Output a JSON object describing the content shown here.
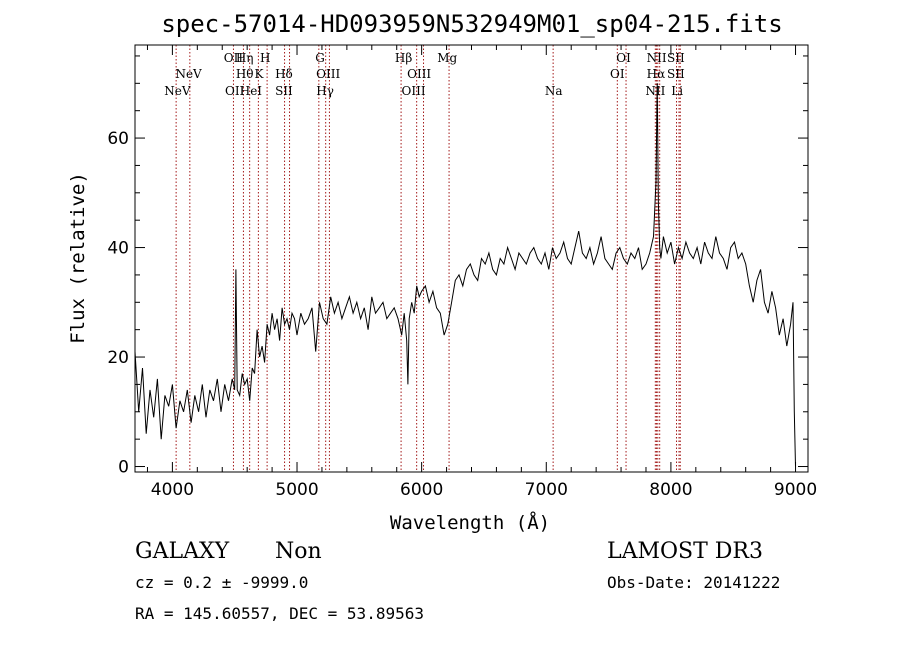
{
  "chart_data": {
    "type": "line",
    "title": "spec-57014-HD093959N532949M01_sp04-215.fits",
    "xlabel": "Wavelength (Å)",
    "ylabel": "Flux (relative)",
    "xlim": [
      3700,
      9100
    ],
    "ylim": [
      -1,
      77
    ],
    "xticks": [
      4000,
      5000,
      6000,
      7000,
      8000,
      9000
    ],
    "yticks": [
      0,
      20,
      40,
      60
    ],
    "grid": false,
    "series": [
      {
        "x": [
          3700,
          3730,
          3760,
          3790,
          3820,
          3850,
          3880,
          3910,
          3940,
          3970,
          4000,
          4030,
          4060,
          4090,
          4120,
          4150,
          4180,
          4210,
          4240,
          4270,
          4300,
          4330,
          4360,
          4390,
          4420,
          4450,
          4480,
          4500,
          4510,
          4520,
          4540,
          4560,
          4580,
          4600,
          4620,
          4640,
          4660,
          4680,
          4700,
          4720,
          4740,
          4760,
          4780,
          4800,
          4820,
          4840,
          4860,
          4880,
          4900,
          4920,
          4940,
          4960,
          4980,
          5000,
          5030,
          5060,
          5090,
          5120,
          5150,
          5180,
          5210,
          5240,
          5270,
          5300,
          5330,
          5360,
          5390,
          5420,
          5450,
          5480,
          5510,
          5540,
          5570,
          5600,
          5630,
          5660,
          5690,
          5720,
          5750,
          5780,
          5810,
          5840,
          5860,
          5880,
          5890,
          5900,
          5920,
          5940,
          5960,
          5980,
          6000,
          6030,
          6060,
          6090,
          6120,
          6150,
          6180,
          6210,
          6240,
          6270,
          6300,
          6330,
          6360,
          6390,
          6420,
          6450,
          6480,
          6510,
          6540,
          6570,
          6600,
          6630,
          6660,
          6690,
          6720,
          6750,
          6780,
          6810,
          6840,
          6870,
          6900,
          6930,
          6960,
          6990,
          7020,
          7050,
          7080,
          7110,
          7140,
          7170,
          7200,
          7230,
          7260,
          7290,
          7320,
          7350,
          7380,
          7410,
          7440,
          7470,
          7500,
          7530,
          7560,
          7590,
          7620,
          7650,
          7680,
          7710,
          7740,
          7770,
          7800,
          7830,
          7860,
          7880,
          7890,
          7900,
          7910,
          7920,
          7940,
          7970,
          8000,
          8030,
          8060,
          8090,
          8120,
          8150,
          8180,
          8210,
          8240,
          8270,
          8300,
          8330,
          8360,
          8390,
          8420,
          8450,
          8480,
          8510,
          8540,
          8570,
          8600,
          8630,
          8660,
          8690,
          8720,
          8750,
          8780,
          8810,
          8840,
          8870,
          8900,
          8930,
          8960,
          8980,
          8990,
          9000
        ],
        "y": [
          21,
          10,
          18,
          6,
          14,
          9,
          16,
          5,
          13,
          11,
          15,
          7,
          12,
          10,
          14,
          8,
          13,
          10,
          15,
          9,
          14,
          12,
          16,
          10,
          15,
          12,
          16,
          14,
          36,
          14,
          13,
          17,
          15,
          16,
          12,
          18,
          17,
          25,
          20,
          22,
          19,
          26,
          24,
          28,
          25,
          27,
          23,
          29,
          26,
          27,
          25,
          28,
          27,
          24,
          28,
          26,
          27,
          29,
          21,
          30,
          27,
          26,
          31,
          28,
          30,
          27,
          29,
          31,
          28,
          30,
          27,
          29,
          25,
          31,
          28,
          29,
          30,
          27,
          28,
          29,
          27,
          24,
          28,
          23,
          15,
          27,
          30,
          28,
          33,
          31,
          32,
          33,
          30,
          32,
          29,
          28,
          24,
          26,
          30,
          34,
          35,
          33,
          36,
          37,
          35,
          34,
          38,
          37,
          39,
          36,
          35,
          38,
          37,
          40,
          38,
          36,
          39,
          38,
          37,
          39,
          40,
          38,
          37,
          39,
          36,
          40,
          38,
          39,
          41,
          38,
          37,
          40,
          43,
          39,
          38,
          40,
          37,
          39,
          42,
          38,
          37,
          36,
          39,
          40,
          38,
          37,
          39,
          38,
          40,
          36,
          37,
          39,
          42,
          52,
          70,
          48,
          40,
          38,
          42,
          39,
          41,
          37,
          40,
          38,
          41,
          39,
          38,
          40,
          37,
          41,
          39,
          38,
          42,
          39,
          38,
          36,
          40,
          41,
          38,
          39,
          37,
          33,
          30,
          34,
          36,
          30,
          28,
          32,
          29,
          24,
          27,
          22,
          26,
          30,
          10,
          0
        ]
      }
    ],
    "emission_lines": [
      {
        "label": "NeV",
        "x": 4040,
        "row": 3
      },
      {
        "label": "NeV",
        "x": 4130,
        "row": 2
      },
      {
        "label": "OII",
        "x": 4490,
        "row": 1
      },
      {
        "label": "OII",
        "x": 4500,
        "row": 3
      },
      {
        "label": "Hη",
        "x": 4580,
        "row": 1
      },
      {
        "label": "Hθ",
        "x": 4580,
        "row": 2
      },
      {
        "label": "HeI",
        "x": 4630,
        "row": 3
      },
      {
        "label": "H",
        "x": 4745,
        "row": 1
      },
      {
        "label": "K",
        "x": 4695,
        "row": 2
      },
      {
        "label": "Hδ",
        "x": 4895,
        "row": 2
      },
      {
        "label": "SII",
        "x": 4895,
        "row": 3
      },
      {
        "label": "G",
        "x": 5185,
        "row": 1
      },
      {
        "label": "OIII",
        "x": 5250,
        "row": 2
      },
      {
        "label": "Hγ",
        "x": 5225,
        "row": 3
      },
      {
        "label": "Hβ",
        "x": 5855,
        "row": 1
      },
      {
        "label": "OIII",
        "x": 5980,
        "row": 2
      },
      {
        "label": "OIII",
        "x": 5935,
        "row": 3
      },
      {
        "label": "Mg",
        "x": 6205,
        "row": 1
      },
      {
        "label": "Na",
        "x": 7060,
        "row": 3
      },
      {
        "label": "OI",
        "x": 7620,
        "row": 1
      },
      {
        "label": "OI",
        "x": 7570,
        "row": 2
      },
      {
        "label": "NII",
        "x": 7885,
        "row": 1
      },
      {
        "label": "Hα",
        "x": 7880,
        "row": 2
      },
      {
        "label": "NII",
        "x": 7875,
        "row": 3
      },
      {
        "label": "SII",
        "x": 8040,
        "row": 1
      },
      {
        "label": "SII",
        "x": 8040,
        "row": 2
      },
      {
        "label": "Li",
        "x": 8050,
        "row": 3
      }
    ],
    "line_positions": [
      4030,
      4140,
      4490,
      4570,
      4620,
      4690,
      4760,
      4900,
      4940,
      5175,
      5230,
      5260,
      5835,
      5960,
      6015,
      6220,
      7055,
      7570,
      7640,
      7875,
      7885,
      7895,
      7910,
      8045,
      8065,
      8075
    ]
  },
  "info": {
    "object_type": "GALAXY",
    "subclass": "Non",
    "survey": "LAMOST DR3",
    "cz_text": "cz = 0.2 ± -9999.0",
    "obs_date_text": "Obs-Date: 20141222",
    "coords_text": "RA = 145.60557, DEC =  53.89563"
  },
  "colors": {
    "spectrum": "#000000",
    "line_markers": "#a31a1a",
    "axes": "#000000"
  }
}
